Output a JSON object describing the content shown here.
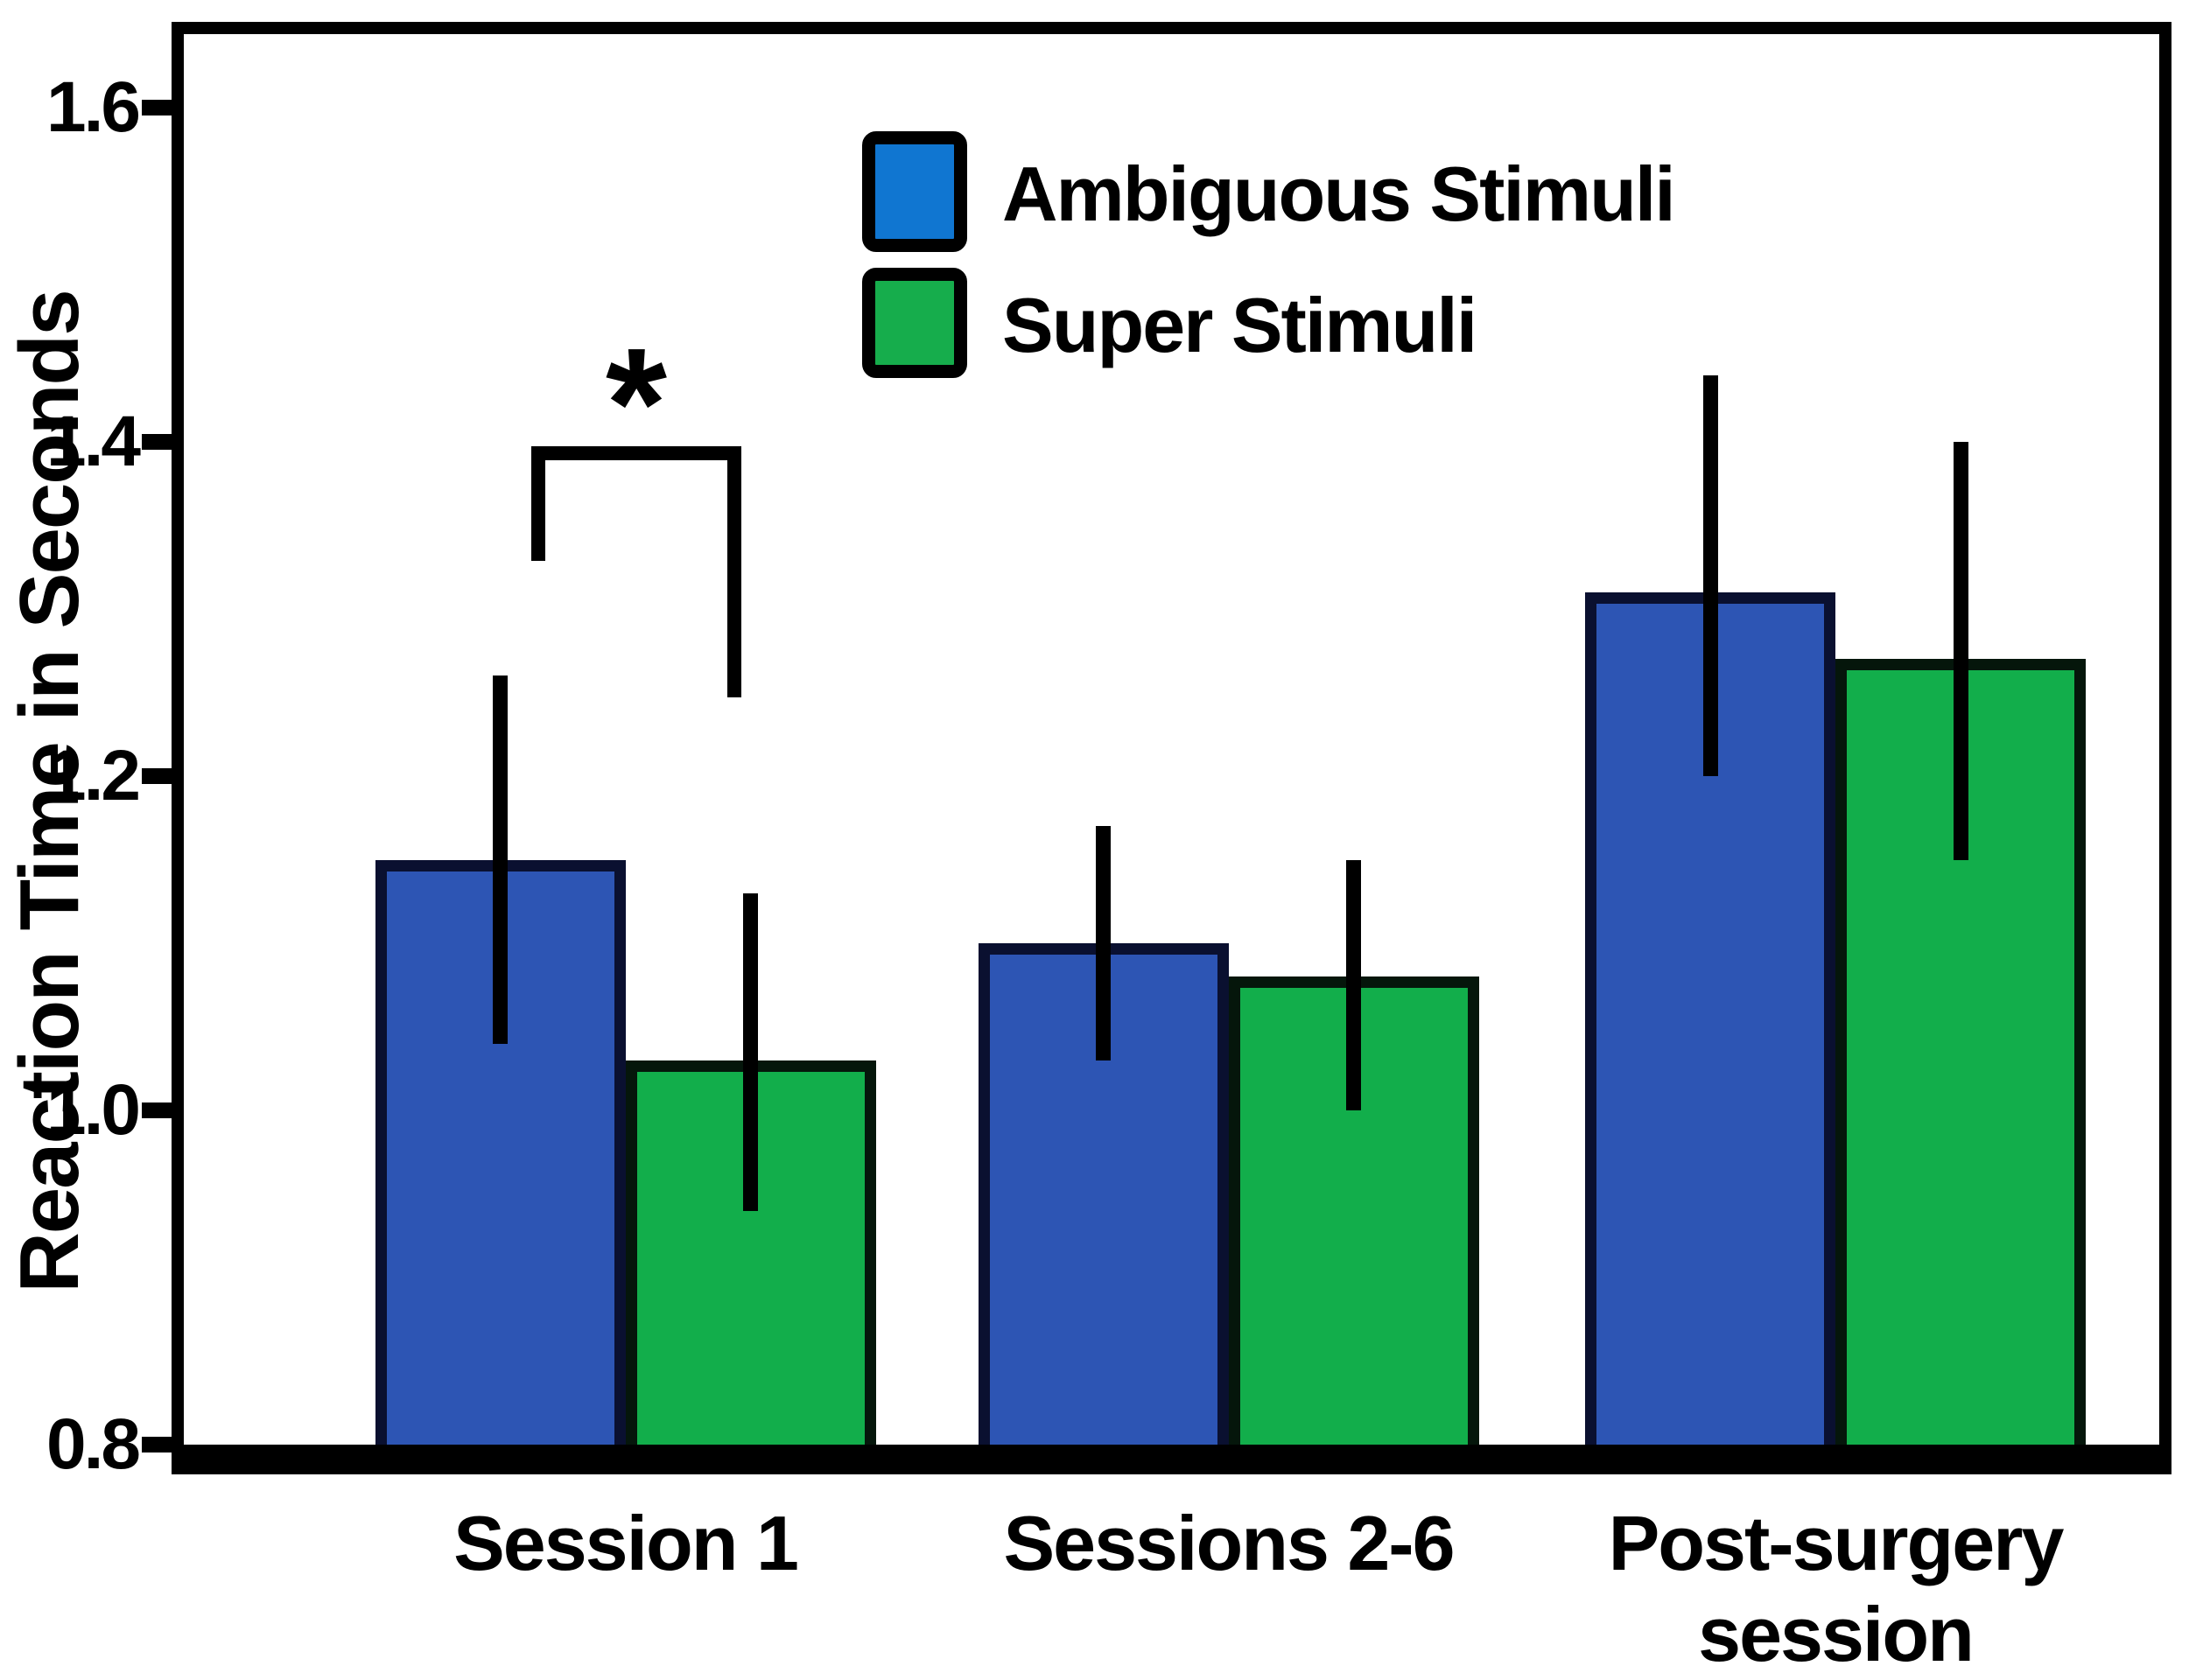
{
  "figure": {
    "background": "#ffffff",
    "frame_color": "#000000"
  },
  "chart_data": {
    "type": "bar",
    "title": "",
    "xlabel": "",
    "ylabel": "Reaction Time in Seconds",
    "categories": [
      "Session 1",
      "Sessions 2-6",
      "Post-surgery\nsession"
    ],
    "ylim": [
      0.8,
      1.65
    ],
    "yticks": [
      0.8,
      1.0,
      1.2,
      1.4,
      1.6
    ],
    "grid": false,
    "legend_position": "upper-center-inside",
    "error_bars": true,
    "series": [
      {
        "name": "Ambiguous Stimuli",
        "bar_color": "#2d55b4",
        "bar_border_color": "#0a1030",
        "legend_swatch_color": "#1076d1",
        "values": [
          1.15,
          1.1,
          1.31
        ],
        "err_low": [
          1.04,
          1.03,
          1.2
        ],
        "err_high": [
          1.26,
          1.17,
          1.44
        ]
      },
      {
        "name": "Super Stimuli",
        "bar_color": "#12ae4b",
        "bar_border_color": "#05160b",
        "legend_swatch_color": "#16ad4c",
        "values": [
          1.03,
          1.08,
          1.27
        ],
        "err_low": [
          0.94,
          1.0,
          1.15
        ],
        "err_high": [
          1.13,
          1.15,
          1.4
        ]
      }
    ],
    "annotations": [
      {
        "label": "*",
        "type": "significance-bracket",
        "category": "Session 1",
        "between": [
          "Ambiguous Stimuli",
          "Super Stimuli"
        ]
      }
    ]
  }
}
